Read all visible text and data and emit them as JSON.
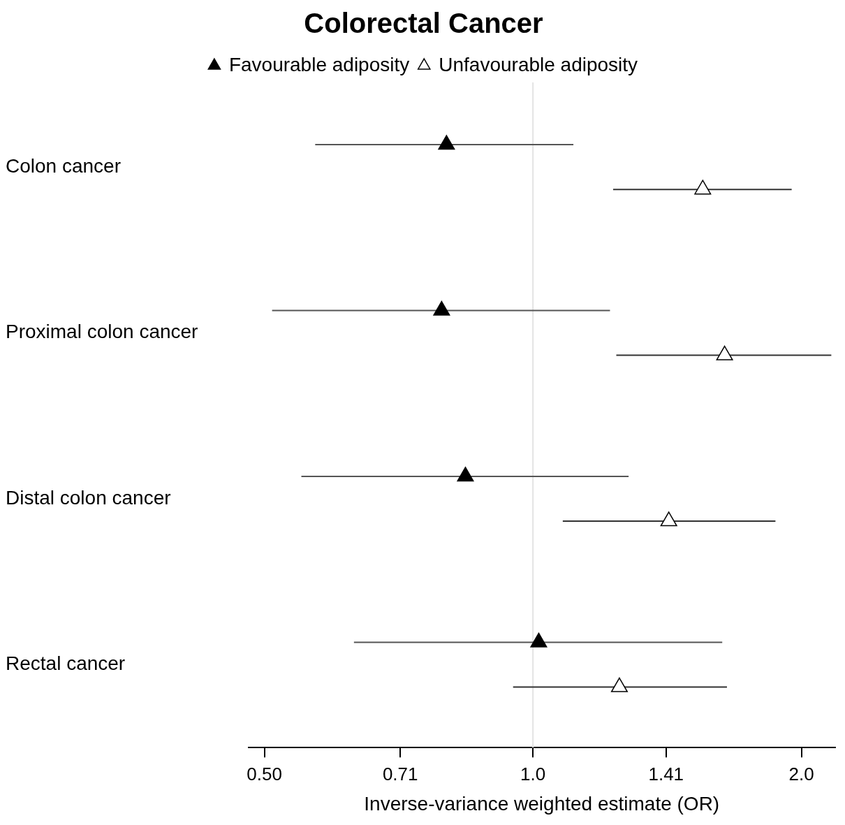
{
  "chart_data": {
    "type": "scatter",
    "title": "Colorectal Cancer",
    "xlabel": "Inverse-variance weighted estimate (OR)",
    "orientation": "horizontal",
    "categories": [
      "Colon cancer",
      "Proximal colon cancer",
      "Distal colon cancer",
      "Rectal cancer"
    ],
    "log": "x",
    "xlim": [
      0.48,
      2.18
    ],
    "xticks": [
      {
        "value": 0.5,
        "label": "0.50"
      },
      0.71,
      {
        "value": 1,
        "label": "1.0"
      },
      1.41,
      {
        "value": 2,
        "label": "2.0"
      }
    ],
    "marker": "triangle",
    "legend": "top",
    "grid": false,
    "ref_lines": [
      {
        "axis": "x",
        "value": 1,
        "color": "#e3e3e3"
      }
    ],
    "series": [
      {
        "name": "Favourable adiposity",
        "color": "#000000",
        "values": [
          0.8,
          0.79,
          0.84,
          1.015
        ],
        "errors": [
          [
            0.57,
            1.11
          ],
          [
            0.51,
            1.22
          ],
          [
            0.55,
            1.28
          ],
          [
            0.63,
            1.63
          ]
        ]
      },
      {
        "name": "Unfavourable adiposity",
        "color": "#ffffff",
        "values": [
          1.55,
          1.64,
          1.42,
          1.25
        ],
        "errors": [
          [
            1.23,
            1.95
          ],
          [
            1.24,
            2.16
          ],
          [
            1.08,
            1.87
          ],
          [
            0.95,
            1.65
          ]
        ]
      }
    ]
  }
}
